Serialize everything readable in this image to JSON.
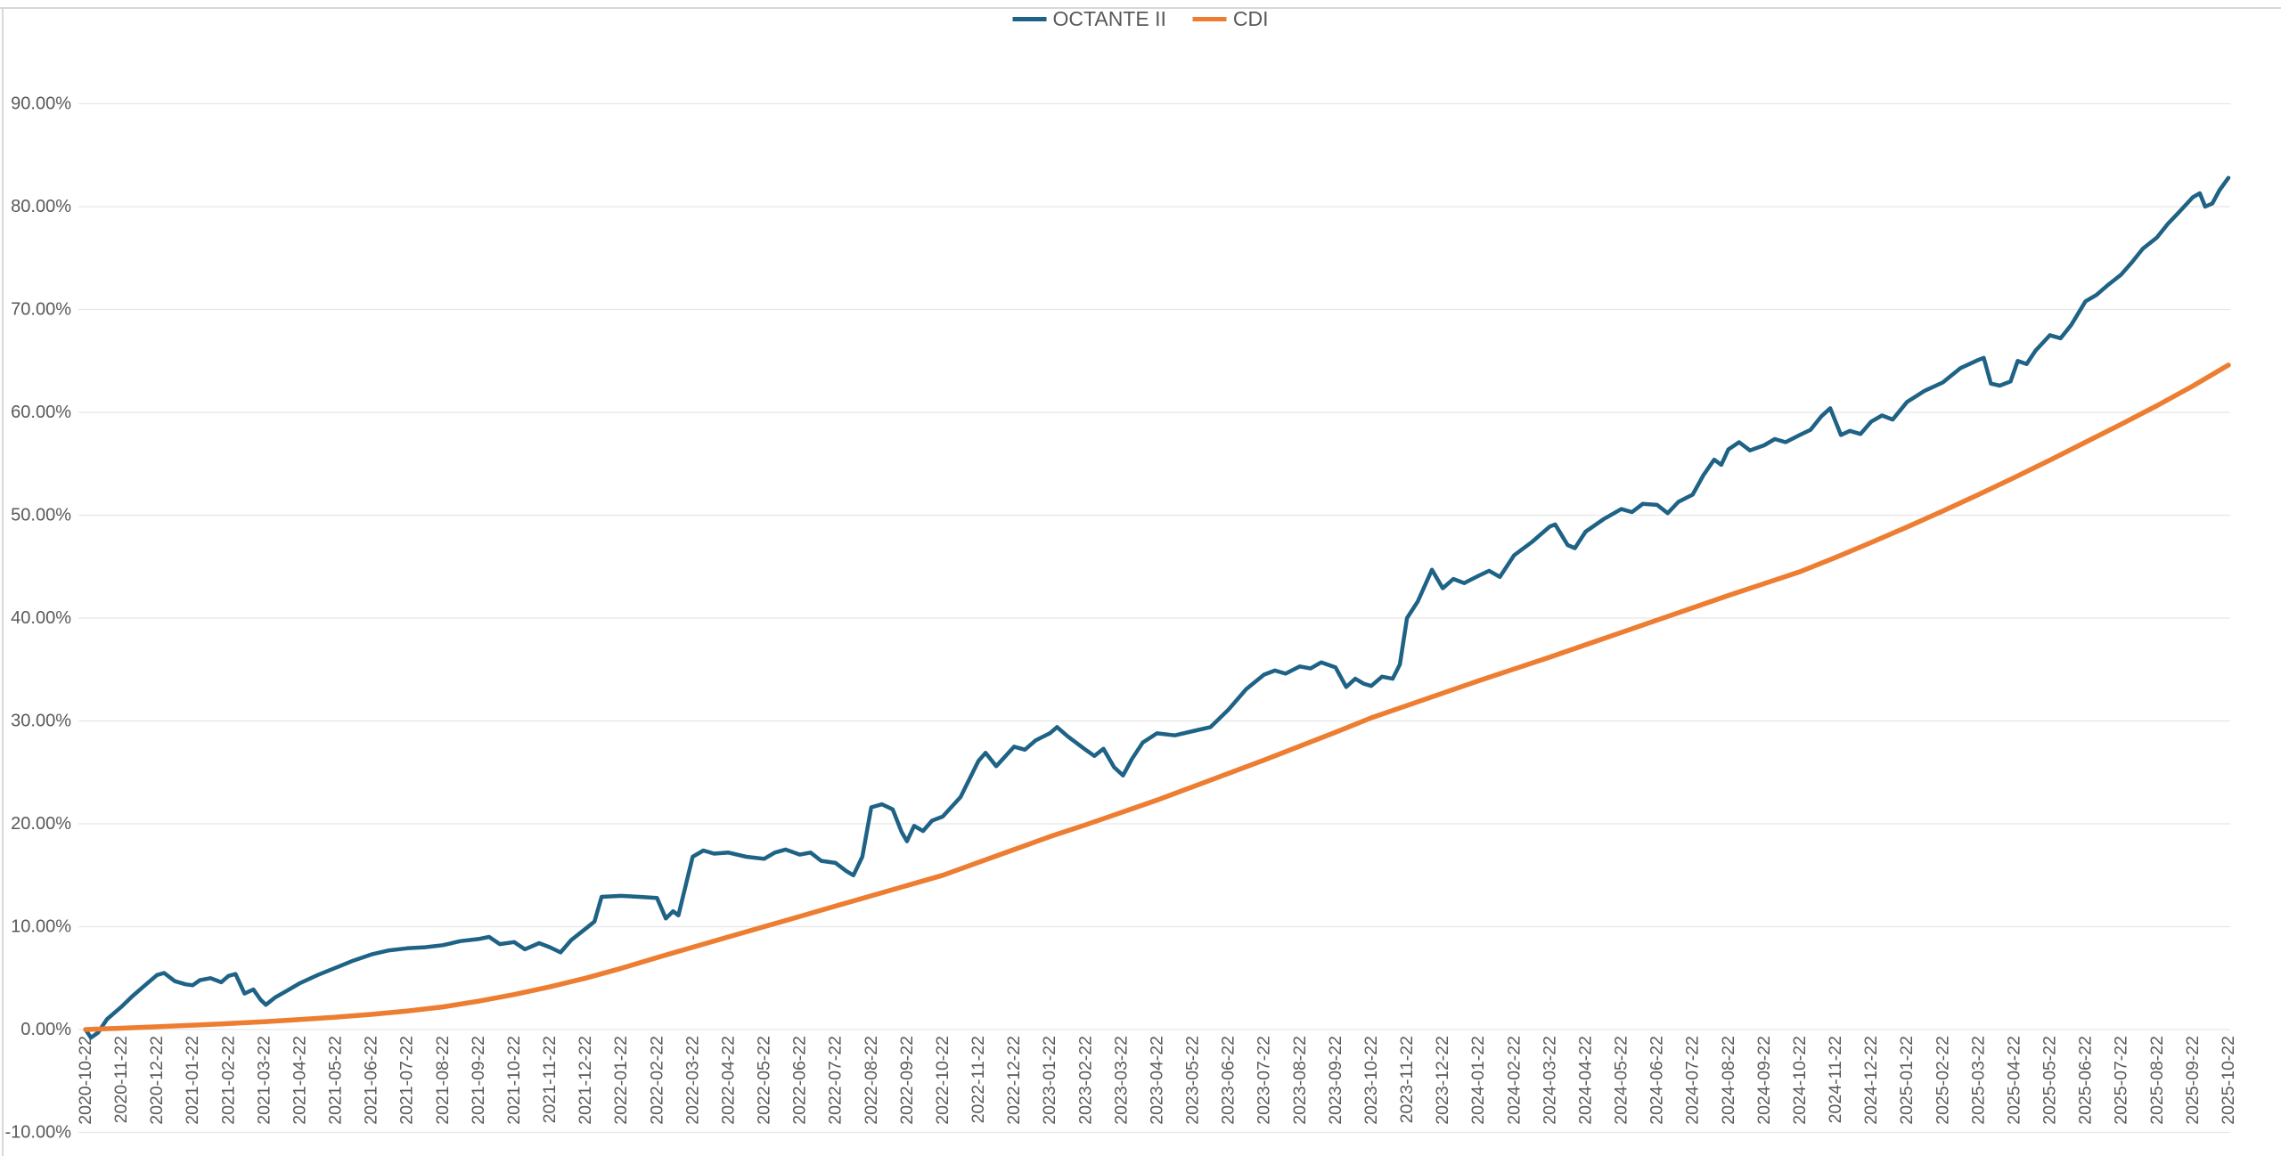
{
  "colors": {
    "octante_line": "#1E6285",
    "cdi_line": "#ED7D31",
    "axis_text": "#595959",
    "gridline": "#E7E7E7",
    "frame_border": "#D8D8D8",
    "background": "#FFFFFF"
  },
  "legend": {
    "position": "top-center",
    "items": [
      {
        "label": "OCTANTE II",
        "color": "#1E6285"
      },
      {
        "label": "CDI",
        "color": "#ED7D31"
      }
    ]
  },
  "chart_data": {
    "type": "line",
    "title": "",
    "grid": true,
    "legend_position": "top-center",
    "point_format": "[month_index_from_2020-10-22, cumulative_return_percent]",
    "y_axis": {
      "min": -10,
      "max": 90,
      "step": 10,
      "tick_labels": [
        "90.00%",
        "80.00%",
        "70.00%",
        "60.00%",
        "50.00%",
        "40.00%",
        "30.00%",
        "20.00%",
        "10.00%",
        "0.00%",
        "-10.00%"
      ]
    },
    "x_ticks": [
      "2020-10-22",
      "2020-11-22",
      "2020-12-22",
      "2021-01-22",
      "2021-02-22",
      "2021-03-22",
      "2021-04-22",
      "2021-05-22",
      "2021-06-22",
      "2021-07-22",
      "2021-08-22",
      "2021-09-22",
      "2021-10-22",
      "2021-11-22",
      "2021-12-22",
      "2022-01-22",
      "2022-02-22",
      "2022-03-22",
      "2022-04-22",
      "2022-05-22",
      "2022-06-22",
      "2022-07-22",
      "2022-08-22",
      "2022-09-22",
      "2022-10-22",
      "2022-11-22",
      "2022-12-22",
      "2023-01-22",
      "2023-02-22",
      "2023-03-22",
      "2023-04-22",
      "2023-05-22",
      "2023-06-22",
      "2023-07-22",
      "2023-08-22",
      "2023-09-22",
      "2023-10-22",
      "2023-11-22",
      "2023-12-22",
      "2024-01-22",
      "2024-02-22",
      "2024-03-22",
      "2024-04-22",
      "2024-05-22",
      "2024-06-22",
      "2024-07-22",
      "2024-08-22",
      "2024-09-22",
      "2024-10-22",
      "2024-11-22",
      "2024-12-22",
      "2025-01-22",
      "2025-02-22",
      "2025-03-22",
      "2025-04-22",
      "2025-05-22",
      "2025-06-22",
      "2025-07-22",
      "2025-08-22",
      "2025-09-22",
      "2025-10-22"
    ],
    "series": [
      {
        "name": "OCTANTE II",
        "color": "#1E6285",
        "stroke_width": 4.5,
        "points": [
          [
            0,
            0.0
          ],
          [
            0.15,
            -0.8
          ],
          [
            0.35,
            -0.3
          ],
          [
            0.6,
            1.0
          ],
          [
            1,
            2.2
          ],
          [
            1.3,
            3.2
          ],
          [
            1.6,
            4.1
          ],
          [
            2,
            5.3
          ],
          [
            2.2,
            5.5
          ],
          [
            2.5,
            4.7
          ],
          [
            2.8,
            4.4
          ],
          [
            3,
            4.3
          ],
          [
            3.2,
            4.8
          ],
          [
            3.5,
            5.0
          ],
          [
            3.8,
            4.6
          ],
          [
            4,
            5.2
          ],
          [
            4.2,
            5.4
          ],
          [
            4.45,
            3.5
          ],
          [
            4.7,
            3.9
          ],
          [
            4.9,
            2.9
          ],
          [
            5.05,
            2.4
          ],
          [
            5.3,
            3.1
          ],
          [
            5.6,
            3.7
          ],
          [
            6,
            4.5
          ],
          [
            6.5,
            5.3
          ],
          [
            7,
            6.0
          ],
          [
            7.5,
            6.7
          ],
          [
            8,
            7.3
          ],
          [
            8.5,
            7.7
          ],
          [
            9,
            7.9
          ],
          [
            9.5,
            8.0
          ],
          [
            10,
            8.2
          ],
          [
            10.5,
            8.6
          ],
          [
            11,
            8.8
          ],
          [
            11.3,
            9.0
          ],
          [
            11.6,
            8.3
          ],
          [
            12,
            8.5
          ],
          [
            12.3,
            7.8
          ],
          [
            12.7,
            8.4
          ],
          [
            13,
            8.0
          ],
          [
            13.3,
            7.5
          ],
          [
            13.6,
            8.7
          ],
          [
            14,
            9.8
          ],
          [
            14.25,
            10.5
          ],
          [
            14.45,
            12.9
          ],
          [
            15,
            13.0
          ],
          [
            15.5,
            12.9
          ],
          [
            16,
            12.8
          ],
          [
            16.25,
            10.8
          ],
          [
            16.45,
            11.5
          ],
          [
            16.6,
            11.1
          ],
          [
            17,
            16.8
          ],
          [
            17.3,
            17.4
          ],
          [
            17.6,
            17.1
          ],
          [
            18,
            17.2
          ],
          [
            18.5,
            16.8
          ],
          [
            19,
            16.6
          ],
          [
            19.3,
            17.2
          ],
          [
            19.6,
            17.5
          ],
          [
            20,
            17.0
          ],
          [
            20.3,
            17.2
          ],
          [
            20.6,
            16.4
          ],
          [
            21,
            16.2
          ],
          [
            21.3,
            15.4
          ],
          [
            21.5,
            15.0
          ],
          [
            21.75,
            16.8
          ],
          [
            22,
            21.6
          ],
          [
            22.3,
            21.9
          ],
          [
            22.6,
            21.4
          ],
          [
            22.85,
            19.2
          ],
          [
            23,
            18.3
          ],
          [
            23.2,
            19.8
          ],
          [
            23.45,
            19.3
          ],
          [
            23.7,
            20.3
          ],
          [
            24,
            20.7
          ],
          [
            24.5,
            22.6
          ],
          [
            25,
            26.1
          ],
          [
            25.2,
            26.9
          ],
          [
            25.5,
            25.6
          ],
          [
            26,
            27.5
          ],
          [
            26.3,
            27.2
          ],
          [
            26.6,
            28.1
          ],
          [
            27,
            28.8
          ],
          [
            27.2,
            29.4
          ],
          [
            27.5,
            28.5
          ],
          [
            28,
            27.2
          ],
          [
            28.25,
            26.6
          ],
          [
            28.5,
            27.3
          ],
          [
            28.8,
            25.5
          ],
          [
            29.05,
            24.7
          ],
          [
            29.3,
            26.3
          ],
          [
            29.6,
            27.9
          ],
          [
            30,
            28.8
          ],
          [
            30.5,
            28.6
          ],
          [
            31,
            29.0
          ],
          [
            31.5,
            29.4
          ],
          [
            32,
            31.1
          ],
          [
            32.5,
            33.1
          ],
          [
            33,
            34.5
          ],
          [
            33.3,
            34.9
          ],
          [
            33.6,
            34.6
          ],
          [
            34,
            35.3
          ],
          [
            34.3,
            35.1
          ],
          [
            34.6,
            35.7
          ],
          [
            35,
            35.2
          ],
          [
            35.3,
            33.3
          ],
          [
            35.55,
            34.1
          ],
          [
            35.8,
            33.6
          ],
          [
            36,
            33.4
          ],
          [
            36.3,
            34.3
          ],
          [
            36.6,
            34.1
          ],
          [
            36.8,
            35.5
          ],
          [
            37,
            40.0
          ],
          [
            37.3,
            41.6
          ],
          [
            37.7,
            44.7
          ],
          [
            38,
            42.9
          ],
          [
            38.3,
            43.8
          ],
          [
            38.6,
            43.4
          ],
          [
            39,
            44.1
          ],
          [
            39.3,
            44.6
          ],
          [
            39.6,
            44.0
          ],
          [
            40,
            46.1
          ],
          [
            40.5,
            47.4
          ],
          [
            41,
            48.9
          ],
          [
            41.15,
            49.1
          ],
          [
            41.5,
            47.1
          ],
          [
            41.7,
            46.8
          ],
          [
            42,
            48.4
          ],
          [
            42.5,
            49.6
          ],
          [
            43,
            50.6
          ],
          [
            43.3,
            50.3
          ],
          [
            43.6,
            51.1
          ],
          [
            44,
            51.0
          ],
          [
            44.3,
            50.2
          ],
          [
            44.6,
            51.3
          ],
          [
            45,
            52.0
          ],
          [
            45.3,
            53.9
          ],
          [
            45.6,
            55.4
          ],
          [
            45.8,
            54.9
          ],
          [
            46,
            56.4
          ],
          [
            46.3,
            57.1
          ],
          [
            46.6,
            56.3
          ],
          [
            47,
            56.8
          ],
          [
            47.3,
            57.4
          ],
          [
            47.6,
            57.1
          ],
          [
            48,
            57.8
          ],
          [
            48.3,
            58.3
          ],
          [
            48.6,
            59.6
          ],
          [
            48.85,
            60.4
          ],
          [
            49.15,
            57.8
          ],
          [
            49.4,
            58.2
          ],
          [
            49.7,
            57.9
          ],
          [
            50,
            59.1
          ],
          [
            50.3,
            59.7
          ],
          [
            50.6,
            59.3
          ],
          [
            51,
            61.0
          ],
          [
            51.5,
            62.1
          ],
          [
            52,
            62.9
          ],
          [
            52.5,
            64.3
          ],
          [
            53,
            65.1
          ],
          [
            53.15,
            65.3
          ],
          [
            53.35,
            62.8
          ],
          [
            53.6,
            62.6
          ],
          [
            53.9,
            63.0
          ],
          [
            54.1,
            65.0
          ],
          [
            54.35,
            64.7
          ],
          [
            54.6,
            66.0
          ],
          [
            55,
            67.5
          ],
          [
            55.3,
            67.2
          ],
          [
            55.6,
            68.5
          ],
          [
            56,
            70.8
          ],
          [
            56.3,
            71.4
          ],
          [
            56.6,
            72.3
          ],
          [
            57,
            73.4
          ],
          [
            57.3,
            74.6
          ],
          [
            57.6,
            75.9
          ],
          [
            58,
            77.0
          ],
          [
            58.3,
            78.3
          ],
          [
            58.6,
            79.4
          ],
          [
            59,
            80.9
          ],
          [
            59.2,
            81.3
          ],
          [
            59.35,
            80.0
          ],
          [
            59.55,
            80.3
          ],
          [
            59.75,
            81.6
          ],
          [
            60,
            82.8
          ]
        ]
      },
      {
        "name": "CDI",
        "color": "#ED7D31",
        "stroke_width": 5.5,
        "points": [
          [
            0,
            0.0
          ],
          [
            1,
            0.13
          ],
          [
            2,
            0.27
          ],
          [
            3,
            0.42
          ],
          [
            4,
            0.58
          ],
          [
            5,
            0.76
          ],
          [
            6,
            0.97
          ],
          [
            7,
            1.2
          ],
          [
            8,
            1.47
          ],
          [
            9,
            1.8
          ],
          [
            10,
            2.2
          ],
          [
            11,
            2.75
          ],
          [
            12,
            3.4
          ],
          [
            13,
            4.15
          ],
          [
            14,
            5.0
          ],
          [
            15,
            5.95
          ],
          [
            16,
            7.0
          ],
          [
            17,
            8.0
          ],
          [
            18,
            9.0
          ],
          [
            19,
            10.0
          ],
          [
            20,
            11.0
          ],
          [
            21,
            12.0
          ],
          [
            22,
            13.0
          ],
          [
            23,
            14.0
          ],
          [
            24,
            15.0
          ],
          [
            25,
            16.25
          ],
          [
            26,
            17.5
          ],
          [
            27,
            18.75
          ],
          [
            28,
            19.9
          ],
          [
            29,
            21.1
          ],
          [
            30,
            22.3
          ],
          [
            31,
            23.6
          ],
          [
            32,
            24.9
          ],
          [
            33,
            26.2
          ],
          [
            34,
            27.55
          ],
          [
            35,
            28.9
          ],
          [
            36,
            30.3
          ],
          [
            37,
            31.5
          ],
          [
            38,
            32.7
          ],
          [
            39,
            33.9
          ],
          [
            40,
            35.05
          ],
          [
            41,
            36.2
          ],
          [
            42,
            37.4
          ],
          [
            43,
            38.6
          ],
          [
            44,
            39.8
          ],
          [
            45,
            41.0
          ],
          [
            46,
            42.2
          ],
          [
            47,
            43.35
          ],
          [
            48,
            44.5
          ],
          [
            49,
            45.9
          ],
          [
            50,
            47.35
          ],
          [
            51,
            48.85
          ],
          [
            52,
            50.4
          ],
          [
            53,
            52.0
          ],
          [
            54,
            53.65
          ],
          [
            55,
            55.35
          ],
          [
            56,
            57.1
          ],
          [
            57,
            58.85
          ],
          [
            58,
            60.65
          ],
          [
            59,
            62.55
          ],
          [
            60,
            64.6
          ]
        ]
      }
    ]
  }
}
